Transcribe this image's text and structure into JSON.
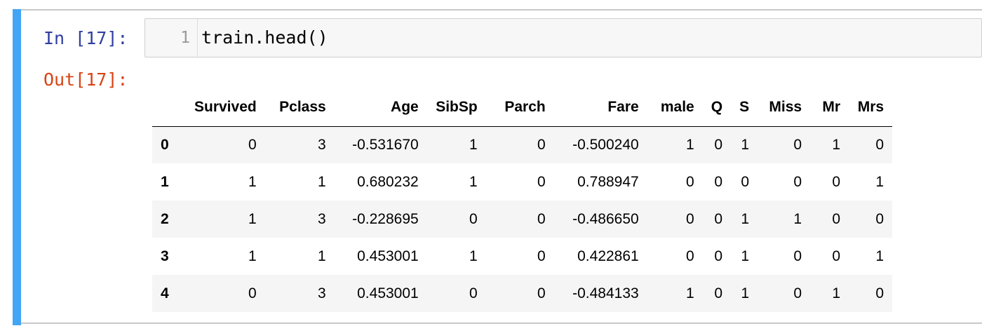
{
  "input_cell": {
    "prompt": "In [17]:",
    "line_number": "1",
    "code": "train.head()"
  },
  "output_cell": {
    "prompt": "Out[17]:",
    "dataframe": {
      "columns": [
        "Survived",
        "Pclass",
        "Age",
        "SibSp",
        "Parch",
        "Fare",
        "male",
        "Q",
        "S",
        "Miss",
        "Mr",
        "Mrs"
      ],
      "index": [
        "0",
        "1",
        "2",
        "3",
        "4"
      ],
      "rows": [
        [
          "0",
          "3",
          "-0.531670",
          "1",
          "0",
          "-0.500240",
          "1",
          "0",
          "1",
          "0",
          "1",
          "0"
        ],
        [
          "1",
          "1",
          "0.680232",
          "1",
          "0",
          "0.788947",
          "0",
          "0",
          "0",
          "0",
          "0",
          "1"
        ],
        [
          "1",
          "3",
          "-0.228695",
          "0",
          "0",
          "-0.486650",
          "0",
          "0",
          "1",
          "1",
          "0",
          "0"
        ],
        [
          "1",
          "1",
          "0.453001",
          "1",
          "0",
          "0.422861",
          "0",
          "0",
          "1",
          "0",
          "0",
          "1"
        ],
        [
          "0",
          "3",
          "0.453001",
          "0",
          "0",
          "-0.484133",
          "1",
          "0",
          "1",
          "0",
          "1",
          "0"
        ]
      ]
    }
  },
  "colors": {
    "selected_cell_accent": "#42a5f5",
    "in_prompt": "#303f9f",
    "out_prompt": "#d84315",
    "input_background": "#f7f7f7",
    "striped_row": "#f5f5f5"
  }
}
